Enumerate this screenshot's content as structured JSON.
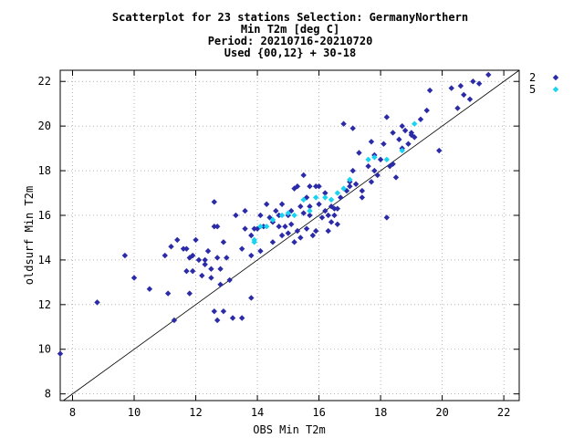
{
  "chart_data": {
    "type": "scatter",
    "title_lines": [
      "Scatterplot for   23 stations Selection: GermanyNorthern",
      "Min T2m [deg C]",
      "Period: 20210716-20210720",
      "Used {00,12} + 30-18"
    ],
    "xlabel": "OBS Min T2m",
    "ylabel": "oldsurf Min T2m",
    "xlim": [
      7.6,
      22.5
    ],
    "ylim": [
      7.7,
      22.5
    ],
    "xticks": [
      "8",
      "10",
      "12",
      "14",
      "16",
      "18",
      "20",
      "22"
    ],
    "yticks": [
      "8",
      "10",
      "12",
      "14",
      "16",
      "18",
      "20",
      "22"
    ],
    "grid": true,
    "diagonal": true,
    "legend_position": "top-right",
    "series": [
      {
        "name": "2",
        "color": "#2b2ba8",
        "marker": "diamond",
        "points": [
          [
            7.6,
            9.8
          ],
          [
            8.8,
            12.1
          ],
          [
            9.7,
            14.2
          ],
          [
            10.0,
            13.2
          ],
          [
            10.5,
            12.7
          ],
          [
            11.1,
            12.5
          ],
          [
            11.0,
            14.2
          ],
          [
            11.2,
            14.6
          ],
          [
            11.3,
            11.3
          ],
          [
            11.4,
            14.9
          ],
          [
            11.6,
            14.5
          ],
          [
            11.7,
            14.5
          ],
          [
            11.8,
            12.5
          ],
          [
            11.9,
            14.2
          ],
          [
            11.7,
            13.5
          ],
          [
            11.9,
            13.5
          ],
          [
            12.0,
            14.9
          ],
          [
            12.1,
            14.0
          ],
          [
            12.2,
            13.3
          ],
          [
            12.3,
            13.8
          ],
          [
            12.4,
            14.4
          ],
          [
            12.5,
            13.6
          ],
          [
            12.6,
            15.5
          ],
          [
            12.6,
            16.6
          ],
          [
            12.7,
            15.5
          ],
          [
            12.8,
            13.6
          ],
          [
            12.8,
            12.9
          ],
          [
            12.6,
            11.7
          ],
          [
            12.7,
            11.3
          ],
          [
            12.9,
            14.8
          ],
          [
            13.1,
            13.1
          ],
          [
            13.2,
            11.4
          ],
          [
            13.5,
            14.5
          ],
          [
            13.5,
            11.4
          ],
          [
            13.6,
            15.4
          ],
          [
            13.8,
            12.3
          ],
          [
            13.8,
            15.1
          ],
          [
            13.9,
            15.4
          ],
          [
            14.0,
            15.4
          ],
          [
            13.8,
            14.2
          ],
          [
            14.1,
            14.4
          ],
          [
            14.2,
            15.5
          ],
          [
            14.3,
            16.5
          ],
          [
            14.5,
            15.7
          ],
          [
            14.5,
            14.8
          ],
          [
            14.6,
            16.2
          ],
          [
            14.7,
            16.0
          ],
          [
            14.8,
            15.1
          ],
          [
            14.8,
            16.5
          ],
          [
            14.9,
            15.5
          ],
          [
            15.0,
            16.0
          ],
          [
            15.0,
            15.2
          ],
          [
            15.1,
            15.6
          ],
          [
            15.1,
            16.2
          ],
          [
            15.2,
            17.2
          ],
          [
            15.2,
            14.8
          ],
          [
            15.3,
            15.3
          ],
          [
            15.4,
            16.4
          ],
          [
            15.4,
            15.0
          ],
          [
            15.5,
            17.8
          ],
          [
            15.5,
            16.1
          ],
          [
            15.6,
            16.8
          ],
          [
            15.6,
            15.4
          ],
          [
            15.7,
            17.3
          ],
          [
            15.7,
            16.4
          ],
          [
            15.8,
            15.1
          ],
          [
            15.9,
            17.3
          ],
          [
            15.9,
            15.3
          ],
          [
            16.0,
            16.5
          ],
          [
            16.1,
            15.9
          ],
          [
            16.2,
            16.2
          ],
          [
            16.2,
            17.0
          ],
          [
            16.3,
            15.3
          ],
          [
            16.4,
            16.4
          ],
          [
            16.4,
            15.7
          ],
          [
            16.5,
            16.0
          ],
          [
            16.6,
            16.3
          ],
          [
            16.6,
            15.6
          ],
          [
            16.7,
            16.8
          ],
          [
            16.8,
            20.1
          ],
          [
            16.9,
            17.1
          ],
          [
            17.0,
            17.5
          ],
          [
            17.1,
            18.0
          ],
          [
            17.1,
            19.9
          ],
          [
            17.2,
            17.4
          ],
          [
            17.3,
            18.8
          ],
          [
            17.4,
            17.1
          ],
          [
            17.6,
            18.2
          ],
          [
            17.7,
            19.3
          ],
          [
            17.7,
            17.5
          ],
          [
            17.8,
            18.7
          ],
          [
            17.9,
            17.8
          ],
          [
            18.0,
            18.5
          ],
          [
            18.1,
            19.2
          ],
          [
            18.2,
            15.9
          ],
          [
            18.2,
            20.4
          ],
          [
            18.3,
            18.2
          ],
          [
            18.4,
            19.7
          ],
          [
            18.5,
            17.7
          ],
          [
            18.6,
            19.4
          ],
          [
            18.7,
            20.0
          ],
          [
            18.8,
            19.8
          ],
          [
            18.9,
            19.2
          ],
          [
            19.0,
            19.7
          ],
          [
            19.1,
            19.5
          ],
          [
            19.3,
            20.3
          ],
          [
            19.5,
            20.7
          ],
          [
            19.6,
            21.6
          ],
          [
            19.9,
            18.9
          ],
          [
            20.3,
            21.7
          ],
          [
            20.6,
            21.8
          ],
          [
            20.7,
            21.4
          ],
          [
            20.9,
            21.2
          ],
          [
            21.0,
            22.0
          ],
          [
            21.2,
            21.9
          ],
          [
            21.5,
            22.3
          ],
          [
            20.5,
            20.8
          ],
          [
            13.3,
            16.0
          ],
          [
            13.6,
            16.2
          ],
          [
            14.1,
            16.0
          ],
          [
            14.4,
            15.9
          ],
          [
            14.7,
            15.5
          ],
          [
            15.3,
            17.3
          ],
          [
            15.7,
            16.0
          ],
          [
            16.0,
            17.3
          ],
          [
            16.3,
            16.0
          ],
          [
            16.5,
            16.3
          ],
          [
            17.0,
            17.3
          ],
          [
            17.4,
            16.8
          ],
          [
            17.8,
            18.0
          ],
          [
            18.4,
            18.3
          ],
          [
            18.7,
            19.0
          ],
          [
            19.0,
            19.6
          ],
          [
            12.3,
            14.0
          ],
          [
            12.7,
            14.1
          ],
          [
            13.0,
            14.1
          ],
          [
            11.8,
            14.1
          ],
          [
            12.5,
            13.2
          ],
          [
            12.9,
            11.7
          ]
        ]
      },
      {
        "name": "5",
        "color": "#19d4f0",
        "marker": "diamond",
        "points": [
          [
            13.9,
            14.8
          ],
          [
            14.1,
            15.5
          ],
          [
            14.3,
            15.5
          ],
          [
            14.5,
            15.8
          ],
          [
            14.8,
            16.0
          ],
          [
            15.2,
            16.0
          ],
          [
            15.5,
            16.7
          ],
          [
            15.7,
            16.2
          ],
          [
            15.9,
            16.8
          ],
          [
            16.2,
            16.8
          ],
          [
            16.4,
            16.7
          ],
          [
            16.6,
            17.0
          ],
          [
            16.8,
            17.2
          ],
          [
            17.0,
            17.6
          ],
          [
            17.6,
            18.5
          ],
          [
            17.8,
            18.6
          ],
          [
            18.2,
            18.5
          ],
          [
            18.7,
            18.9
          ],
          [
            19.1,
            20.1
          ],
          [
            13.9,
            14.9
          ],
          [
            15.0,
            16.1
          ]
        ]
      }
    ]
  }
}
